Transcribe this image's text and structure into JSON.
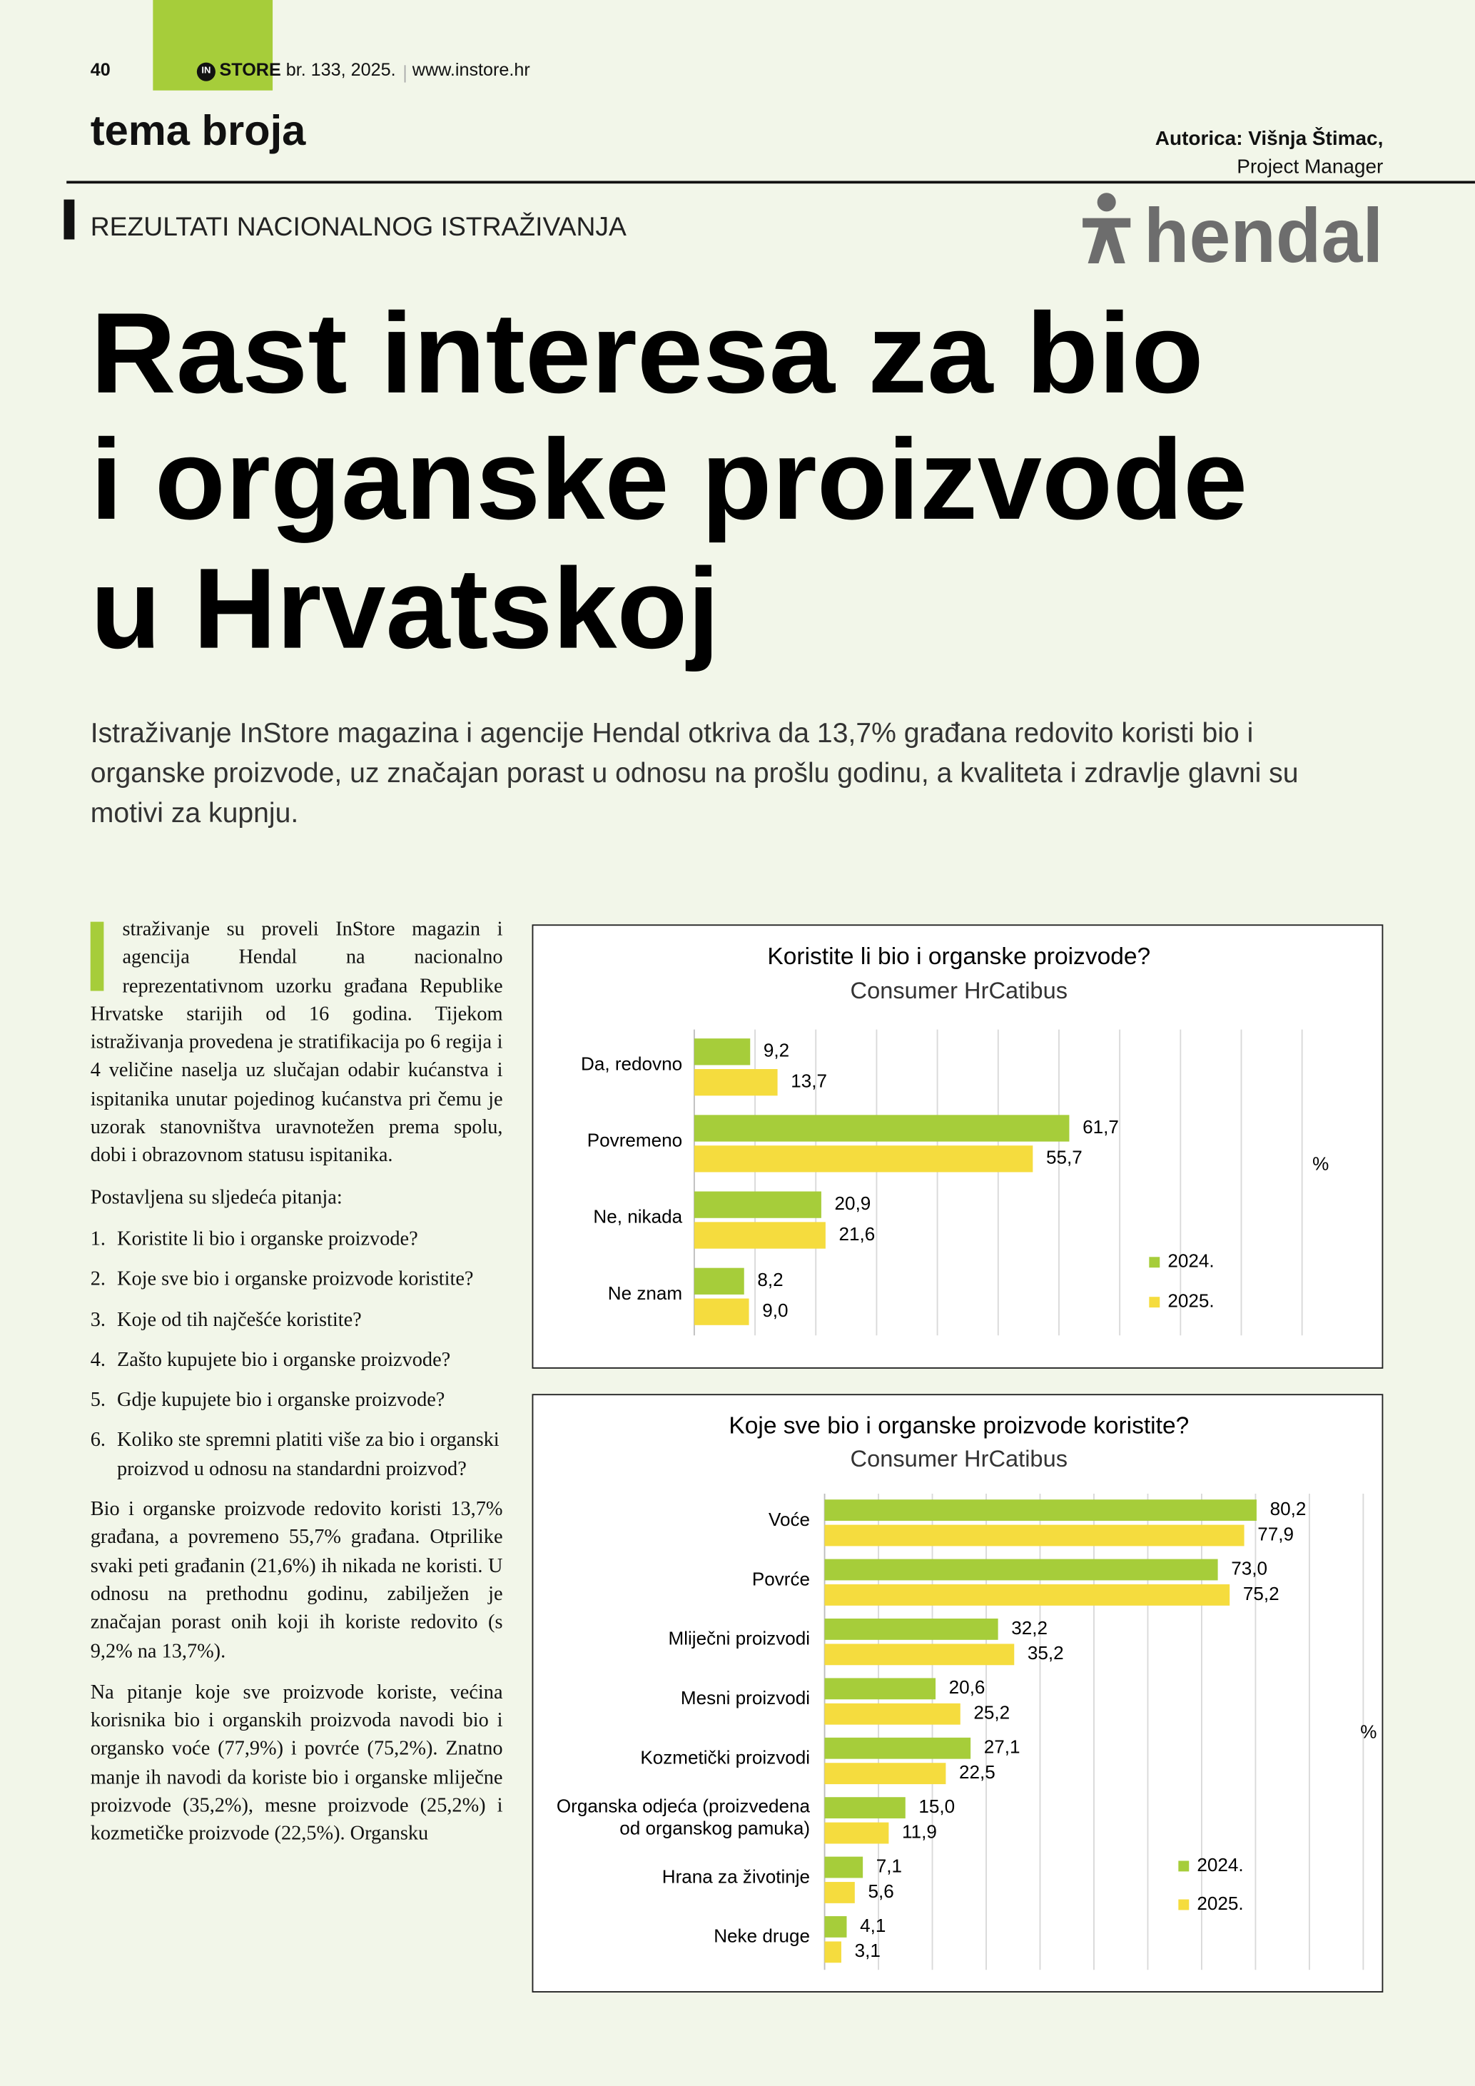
{
  "header": {
    "page_number": "40",
    "brand_mark": "IN",
    "brand": "STORE",
    "issue": "br. 133, 2025.",
    "url": "www.instore.hr"
  },
  "section": "tema broja",
  "author": {
    "name": "Autorica: Višnja Štimac,",
    "role": "Project Manager"
  },
  "kicker": "REZULTATI NACIONALNOG ISTRAŽIVANJA",
  "logo": "hendal",
  "title_lines": [
    "Rast interesa za bio",
    "i organske proizvode",
    "u Hrvatskoj"
  ],
  "lead": "Istraživanje InStore magazina i agencije Hendal otkriva da 13,7% građana redovito koristi bio i organske proizvode, uz značajan porast u odnosu na prošlu godinu, a kvaliteta i zdravlje glavni su motivi za kupnju.",
  "body": {
    "drop_cap": "I",
    "intro": "straživanje su proveli InStore magazin i agencija Hendal na nacionalno reprezentativnom uzorku građana Republike Hrvatske starijih od 16 godina. Tijekom istraživanja provedena je stratifikacija po 6 regija i 4 veličine naselja uz slučajan odabir kućanstva i ispitanika unutar pojedinog kućanstva pri čemu je uzorak stanovništva uravnotežen prema spolu, dobi i obrazovnom statusu ispitanika.",
    "questions_intro": "Postavljena su sljedeća pitanja:",
    "questions": [
      {
        "number": "1.",
        "text": "Koristite li bio i organske proizvode?"
      },
      {
        "number": "2.",
        "text": "Koje sve bio i organske proizvode koristite?"
      },
      {
        "number": "3.",
        "text": "Koje od tih najčešće koristite?"
      },
      {
        "number": "4.",
        "text": "Zašto kupujete bio i organske proizvode?"
      },
      {
        "number": "5.",
        "text": "Gdje kupujete bio i organske proizvode?"
      },
      {
        "number": "6.",
        "text": "Koliko ste spremni platiti više za bio i organski proizvod u odnosu na standardni proizvod?"
      }
    ],
    "paragraphs": [
      "Bio i organske proizvode redovito koristi 13,7% građana, a povremeno 55,7% građana. Otprilike svaki peti građanin (21,6%) ih nikada ne koristi. U odnosu na prethodnu godinu, zabilježen je značajan porast onih koji ih koriste redovito (s 9,2% na 13,7%).",
      "Na pitanje koje sve proizvode koriste, većina korisnika bio i organskih proizvoda navodi bio i organsko voće (77,9%) i povrće (75,2%). Znatno manje ih navodi da koriste bio i organske mliječne proizvode (35,2%), mesne proizvode (25,2%) i kozmetičke proizvode (22,5%). Organsku"
    ]
  },
  "chart_data": [
    {
      "type": "bar",
      "orientation": "horizontal",
      "title": "Koristite li bio i organske proizvode?",
      "subtitle": "Consumer HrCatibus",
      "unit_label": "%",
      "categories": [
        "Da, redovno",
        "Povremeno",
        "Ne, nikada",
        "Ne znam"
      ],
      "series": [
        {
          "name": "2024.",
          "color": "#a6cd3a",
          "values": [
            9.2,
            61.7,
            20.9,
            8.2
          ],
          "value_labels": [
            "9,2",
            "61,7",
            "20,9",
            "8,2"
          ]
        },
        {
          "name": "2025.",
          "color": "#f5dc3e",
          "values": [
            13.7,
            55.7,
            21.6,
            9.0
          ],
          "value_labels": [
            "13,7",
            "55,7",
            "21,6",
            "9,0"
          ]
        }
      ],
      "xlim": [
        0,
        100
      ],
      "xticks": [
        0,
        10,
        20,
        30,
        40,
        50,
        60,
        70,
        80,
        90,
        100
      ],
      "grid": true,
      "legend": "lower right"
    },
    {
      "type": "bar",
      "orientation": "horizontal",
      "title": "Koje sve bio i organske proizvode koristite?",
      "subtitle": "Consumer HrCatibus",
      "unit_label": "%",
      "categories": [
        "Voće",
        "Povrće",
        "Mliječni proizvodi",
        "Mesni proizvodi",
        "Kozmetički proizvodi",
        "Organska odjeća (proizvedena\nod organskog pamuka)",
        "Hrana za životinje",
        "Neke druge"
      ],
      "series": [
        {
          "name": "2024.",
          "color": "#a6cd3a",
          "values": [
            80.2,
            73.0,
            32.2,
            20.6,
            27.1,
            15.0,
            7.1,
            4.1
          ],
          "value_labels": [
            "80,2",
            "73,0",
            "32,2",
            "20,6",
            "27,1",
            "15,0",
            "7,1",
            "4,1"
          ]
        },
        {
          "name": "2025.",
          "color": "#f5dc3e",
          "values": [
            77.9,
            75.2,
            35.2,
            25.2,
            22.5,
            11.9,
            5.6,
            3.1
          ],
          "value_labels": [
            "77,9",
            "75,2",
            "35,2",
            "25,2",
            "22,5",
            "11,9",
            "5,6",
            "3,1"
          ]
        }
      ],
      "xlim": [
        0,
        100
      ],
      "xticks": [
        0,
        10,
        20,
        30,
        40,
        50,
        60,
        70,
        80,
        90,
        100
      ],
      "grid": true,
      "legend": "lower right"
    }
  ]
}
